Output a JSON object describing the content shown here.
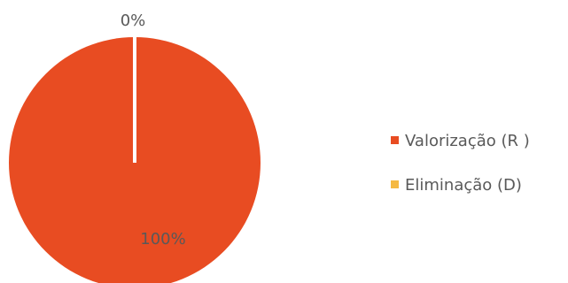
{
  "chart_data": {
    "type": "pie",
    "categories": [
      "Valorização (R )",
      "Eliminação (D)"
    ],
    "values": [
      100,
      0
    ],
    "data_labels": [
      "100%",
      "0%"
    ],
    "colors": [
      "#E84C22",
      "#F5B942"
    ],
    "legend_position": "right"
  }
}
